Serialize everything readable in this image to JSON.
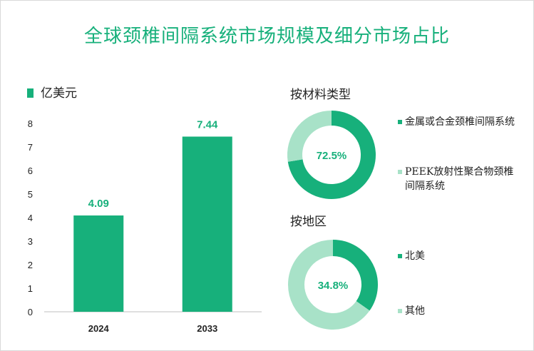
{
  "title": "全球颈椎间隔系统市场规模及细分市场占比",
  "colors": {
    "primary": "#17b07b",
    "light": "#a8e2c8"
  },
  "chart_data": [
    {
      "type": "bar",
      "unit": "亿美元",
      "categories": [
        "2024",
        "2033"
      ],
      "values": [
        4.09,
        7.44
      ],
      "value_labels": [
        "4.09",
        "7.44"
      ],
      "ylim": [
        0,
        8
      ],
      "yticks": [
        "0",
        "1",
        "2",
        "3",
        "4",
        "5",
        "6",
        "7",
        "8"
      ]
    },
    {
      "type": "pie",
      "title": "按材料类型",
      "center_label": "72.5%",
      "slices": [
        {
          "label": "金属或合金颈椎间隔系统",
          "value": 72.5
        },
        {
          "label": "PEEK放射性聚合物颈椎间隔系统",
          "value": 27.5
        }
      ]
    },
    {
      "type": "pie",
      "title": "按地区",
      "center_label": "34.8%",
      "slices": [
        {
          "label": "北美",
          "value": 34.8
        },
        {
          "label": "其他",
          "value": 65.2
        }
      ]
    }
  ]
}
